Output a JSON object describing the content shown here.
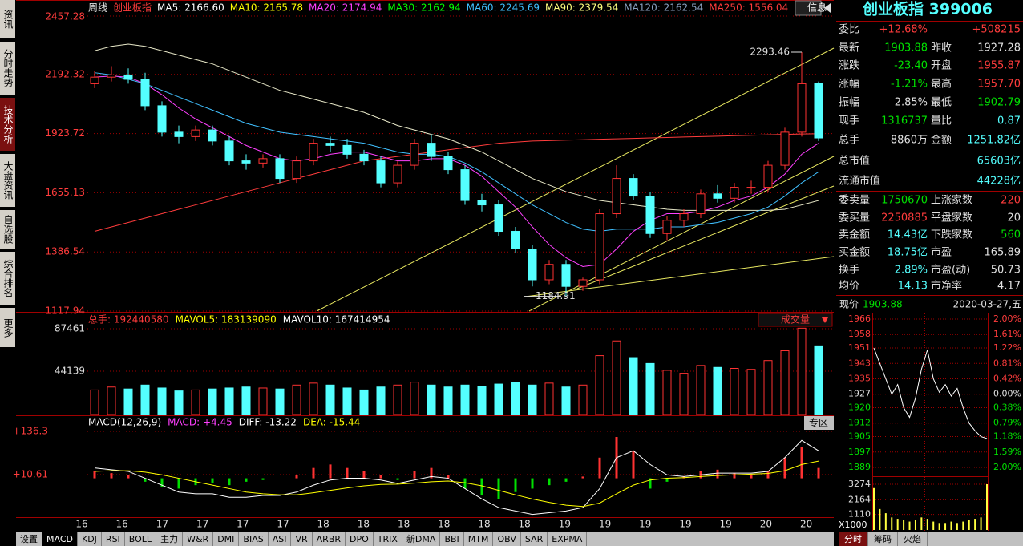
{
  "left_tabs": [
    "资讯",
    "分时走势",
    "技术分析",
    "大盘资讯",
    "自选股",
    "综合排名",
    "更多"
  ],
  "main_chart": {
    "type": "candlestick",
    "header_labels": [
      {
        "text": "周线",
        "color": "#e0e0e0"
      },
      {
        "text": "创业板指",
        "color": "#ff3c3c"
      },
      {
        "text": "MA5: 2166.60",
        "color": "#ffffff"
      },
      {
        "text": "MA10: 2165.78",
        "color": "#ffff00"
      },
      {
        "text": "MA20: 2174.94",
        "color": "#ff40ff"
      },
      {
        "text": "MA30: 2162.94",
        "color": "#00ff00"
      },
      {
        "text": "MA60: 2245.69",
        "color": "#40c0ff"
      },
      {
        "text": "MA90: 2379.54",
        "color": "#ffff80"
      },
      {
        "text": "MA120: 2162.54",
        "color": "#8aa0c0"
      },
      {
        "text": "MA250: 1556.04",
        "color": "#ff3c3c"
      }
    ],
    "info_button": "信息",
    "ylim": [
      1117.94,
      2457.28
    ],
    "yticks": [
      2457.28,
      2192.32,
      1923.72,
      1655.13,
      1386.54,
      1117.94
    ],
    "x_labels": [
      "16",
      "16",
      "17",
      "17",
      "17",
      "17",
      "18",
      "18",
      "18",
      "18",
      "18",
      "18",
      "19",
      "19",
      "19",
      "19",
      "19",
      "20",
      "20"
    ],
    "up_color": "#ff3232",
    "down_color": "#54ffff",
    "open": [
      2150,
      2180,
      2190,
      2170,
      2050,
      1930,
      1910,
      1940,
      1890,
      1800,
      1790,
      1810,
      1720,
      1800,
      1880,
      1870,
      1830,
      1800,
      1700,
      1780,
      1880,
      1820,
      1760,
      1620,
      1600,
      1480,
      1400,
      1260,
      1330,
      1230,
      1260,
      1560,
      1720,
      1640,
      1470,
      1530,
      1560,
      1650,
      1630,
      1680,
      1680,
      1780,
      1930,
      2150
    ],
    "high": [
      2210,
      2230,
      2220,
      2200,
      2070,
      1960,
      1960,
      1960,
      1910,
      1830,
      1830,
      1830,
      1820,
      1900,
      1910,
      1900,
      1850,
      1820,
      1800,
      1900,
      1920,
      1840,
      1780,
      1650,
      1620,
      1500,
      1420,
      1350,
      1350,
      1270,
      1580,
      1780,
      1740,
      1660,
      1550,
      1580,
      1670,
      1690,
      1700,
      1710,
      1800,
      1950,
      2293.46,
      2160
    ],
    "low": [
      2130,
      2160,
      2150,
      2030,
      1910,
      1880,
      1890,
      1870,
      1780,
      1760,
      1770,
      1700,
      1700,
      1780,
      1840,
      1810,
      1780,
      1680,
      1680,
      1760,
      1800,
      1740,
      1600,
      1570,
      1460,
      1380,
      1230,
      1240,
      1184.91,
      1210,
      1240,
      1540,
      1620,
      1450,
      1440,
      1500,
      1540,
      1610,
      1610,
      1650,
      1660,
      1760,
      1910,
      1890
    ],
    "close": [
      2180,
      2190,
      2170,
      2050,
      1930,
      1910,
      1940,
      1890,
      1800,
      1790,
      1810,
      1720,
      1800,
      1880,
      1870,
      1830,
      1800,
      1700,
      1780,
      1880,
      1820,
      1760,
      1620,
      1600,
      1480,
      1400,
      1260,
      1330,
      1230,
      1260,
      1560,
      1720,
      1640,
      1470,
      1530,
      1560,
      1650,
      1630,
      1680,
      1680,
      1780,
      1930,
      2150,
      1904
    ],
    "ma_lines": [
      {
        "color": "#ff3c3c",
        "values": [
          1480,
          1500,
          1520,
          1540,
          1560,
          1580,
          1600,
          1620,
          1640,
          1660,
          1680,
          1700,
          1720,
          1740,
          1760,
          1780,
          1800,
          1810,
          1820,
          1830,
          1840,
          1850,
          1860,
          1870,
          1880,
          1885,
          1890,
          1892,
          1894,
          1896,
          1898,
          1900,
          1902,
          1904,
          1906,
          1908,
          1910,
          1912,
          1914,
          1916,
          1918,
          1920,
          1922,
          1923
        ]
      },
      {
        "color": "#e8e8c8",
        "values": [
          2300,
          2320,
          2330,
          2320,
          2300,
          2280,
          2260,
          2240,
          2210,
          2180,
          2150,
          2120,
          2100,
          2080,
          2060,
          2040,
          2020,
          1990,
          1960,
          1940,
          1920,
          1900,
          1870,
          1840,
          1800,
          1760,
          1720,
          1690,
          1660,
          1640,
          1620,
          1610,
          1600,
          1590,
          1580,
          1575,
          1575,
          1575,
          1575,
          1575,
          1575,
          1580,
          1600,
          1620
        ]
      },
      {
        "color": "#40c0ff",
        "values": [
          2200,
          2190,
          2170,
          2150,
          2120,
          2090,
          2060,
          2030,
          2000,
          1970,
          1950,
          1930,
          1920,
          1910,
          1900,
          1890,
          1880,
          1860,
          1840,
          1830,
          1830,
          1820,
          1790,
          1750,
          1700,
          1650,
          1600,
          1560,
          1520,
          1490,
          1480,
          1490,
          1490,
          1490,
          1500,
          1500,
          1510,
          1520,
          1540,
          1560,
          1590,
          1640,
          1700,
          1750
        ]
      },
      {
        "color": "#ff40ff",
        "values": [
          2180,
          2185,
          2180,
          2150,
          2100,
          2040,
          1990,
          1950,
          1910,
          1870,
          1840,
          1810,
          1800,
          1810,
          1830,
          1840,
          1840,
          1820,
          1800,
          1800,
          1810,
          1810,
          1780,
          1730,
          1660,
          1590,
          1500,
          1420,
          1360,
          1320,
          1330,
          1400,
          1480,
          1530,
          1560,
          1560,
          1570,
          1590,
          1620,
          1640,
          1680,
          1740,
          1830,
          1880
        ]
      }
    ]
  },
  "volume_chart": {
    "labels": [
      {
        "text": "总手: 192440580",
        "color": "#ff3c3c"
      },
      {
        "text": "MAVOL5: 183139090",
        "color": "#ffff00"
      },
      {
        "text": "MAVOL10: 167414954",
        "color": "#ffffff"
      }
    ],
    "selector": "成交量",
    "ylim": [
      0,
      87461
    ],
    "yticks": [
      87461,
      44139
    ],
    "values": [
      25000,
      28000,
      26000,
      30000,
      27000,
      24000,
      25000,
      26000,
      27000,
      28000,
      27000,
      26000,
      30000,
      32000,
      30000,
      27000,
      25000,
      28000,
      30000,
      33000,
      30000,
      28000,
      30000,
      29000,
      31000,
      33000,
      30000,
      32000,
      28000,
      30000,
      60000,
      75000,
      58000,
      52000,
      45000,
      42000,
      50000,
      48000,
      47000,
      46000,
      55000,
      65000,
      88000,
      70000
    ]
  },
  "macd_chart": {
    "labels": [
      {
        "text": "MACD(12,26,9)",
        "color": "#ffffff"
      },
      {
        "text": "MACD: +4.45",
        "color": "#ff40ff"
      },
      {
        "text": "DIFF: -13.22",
        "color": "#ffffff"
      },
      {
        "text": "DEA: -15.44",
        "color": "#ffff00"
      }
    ],
    "zone_button": "专区",
    "yticks": [
      {
        "value": 136.3,
        "label": "+136.3"
      },
      {
        "value": 10.61,
        "label": "+10.61"
      }
    ],
    "macd": [
      20,
      15,
      10,
      -10,
      -25,
      -30,
      -20,
      -15,
      -20,
      -10,
      -5,
      0,
      10,
      30,
      40,
      30,
      20,
      10,
      -5,
      20,
      30,
      10,
      -30,
      -50,
      -60,
      -40,
      -30,
      -20,
      -10,
      5,
      60,
      120,
      80,
      -30,
      -10,
      5,
      20,
      25,
      15,
      10,
      20,
      60,
      90,
      30
    ],
    "diff": [
      30,
      25,
      20,
      0,
      -20,
      -40,
      -45,
      -45,
      -55,
      -55,
      -50,
      -50,
      -40,
      -20,
      -5,
      0,
      0,
      -5,
      -15,
      -5,
      5,
      0,
      -30,
      -60,
      -85,
      -95,
      -105,
      -100,
      -95,
      -85,
      -30,
      60,
      80,
      40,
      10,
      5,
      10,
      15,
      15,
      15,
      20,
      60,
      110,
      80
    ],
    "dea": [
      20,
      22,
      22,
      18,
      10,
      0,
      -10,
      -20,
      -30,
      -40,
      -45,
      -48,
      -48,
      -42,
      -35,
      -28,
      -22,
      -18,
      -17,
      -14,
      -10,
      -8,
      -13,
      -22,
      -35,
      -48,
      -60,
      -70,
      -78,
      -82,
      -72,
      -45,
      -20,
      -5,
      0,
      2,
      5,
      8,
      10,
      12,
      14,
      22,
      40,
      50
    ]
  },
  "bottom_tabs": [
    "设置",
    "MACD",
    "KDJ",
    "RSI",
    "BOLL",
    "主力",
    "W&R",
    "DMI",
    "BIAS",
    "ASI",
    "VR",
    "ARBR",
    "DPO",
    "TRIX",
    "新DMA",
    "BBI",
    "MTM",
    "OBV",
    "SAR",
    "EXPMA"
  ],
  "selected_tab": 1,
  "quote": {
    "title": "创业板指 399006",
    "rows": [
      {
        "cells": [
          "委比",
          "+12.68%",
          "+508215"
        ],
        "colors": [
          "#e0e0e0",
          "#ff3c3c",
          "#ff3c3c"
        ]
      },
      {
        "cells": [
          "最新",
          "1903.88",
          "昨收",
          "1927.28"
        ],
        "colors": [
          "#e0e0e0",
          "#00e000",
          "#e0e0e0",
          "#e0e0e0"
        ]
      },
      {
        "cells": [
          "涨跌",
          "-23.40",
          "开盘",
          "1955.87"
        ],
        "colors": [
          "#e0e0e0",
          "#00e000",
          "#e0e0e0",
          "#ff3c3c"
        ]
      },
      {
        "cells": [
          "涨幅",
          "-1.21%",
          "最高",
          "1957.70"
        ],
        "colors": [
          "#e0e0e0",
          "#00e000",
          "#e0e0e0",
          "#ff3c3c"
        ]
      },
      {
        "cells": [
          "振幅",
          "2.85%",
          "最低",
          "1902.79"
        ],
        "colors": [
          "#e0e0e0",
          "#e0e0e0",
          "#e0e0e0",
          "#00e000"
        ]
      },
      {
        "cells": [
          "现手",
          "1316737",
          "量比",
          "0.87"
        ],
        "colors": [
          "#e0e0e0",
          "#00e000",
          "#e0e0e0",
          "#54ffff"
        ]
      },
      {
        "cells": [
          "总手",
          "8860万",
          "金额",
          "1251.82亿"
        ],
        "colors": [
          "#e0e0e0",
          "#e0e0e0",
          "#e0e0e0",
          "#54ffff"
        ]
      },
      {
        "cells": [
          "总市值",
          "65603亿"
        ],
        "colors": [
          "#e0e0e0",
          "#54ffff"
        ]
      },
      {
        "cells": [
          "流通市值",
          "44228亿"
        ],
        "colors": [
          "#e0e0e0",
          "#54ffff"
        ]
      },
      {
        "cells": [
          "委卖量",
          "1750670",
          "上涨家数",
          "220"
        ],
        "colors": [
          "#e0e0e0",
          "#00e000",
          "#e0e0e0",
          "#ff3c3c"
        ]
      },
      {
        "cells": [
          "委买量",
          "2250885",
          "平盘家数",
          "20"
        ],
        "colors": [
          "#e0e0e0",
          "#ff3c3c",
          "#e0e0e0",
          "#e0e0e0"
        ]
      },
      {
        "cells": [
          "卖金额",
          "14.43亿",
          "下跌家数",
          "560"
        ],
        "colors": [
          "#e0e0e0",
          "#54ffff",
          "#e0e0e0",
          "#00e000"
        ]
      },
      {
        "cells": [
          "买金额",
          "18.75亿",
          "市盈",
          "165.89"
        ],
        "colors": [
          "#e0e0e0",
          "#54ffff",
          "#e0e0e0",
          "#e0e0e0"
        ]
      },
      {
        "cells": [
          "换手",
          "2.89%",
          "市盈(动)",
          "50.73"
        ],
        "colors": [
          "#e0e0e0",
          "#54ffff",
          "#e0e0e0",
          "#e0e0e0"
        ]
      },
      {
        "cells": [
          "均价",
          "14.13",
          "市净率",
          "4.17"
        ],
        "colors": [
          "#e0e0e0",
          "#54ffff",
          "#e0e0e0",
          "#e0e0e0"
        ]
      }
    ]
  },
  "intraday": {
    "price_label": "现价",
    "price": 1903.88,
    "datetime": "2020-03-27,五",
    "ylim": [
      1889,
      1966
    ],
    "price_ticks": [
      1966,
      1958,
      1951,
      1943,
      1935,
      1927,
      1920,
      1912,
      1905,
      1897,
      1889
    ],
    "pct_ticks": [
      "2.00%",
      "1.61%",
      "1.22%",
      "0.81%",
      "0.42%",
      "0.00%",
      "0.38%",
      "0.79%",
      "1.18%",
      "1.59%",
      "2.00%"
    ],
    "tick_colors": [
      "#ff3c3c",
      "#ff3c3c",
      "#ff3c3c",
      "#ff3c3c",
      "#ff3c3c",
      "#e0e0e0",
      "#00e000",
      "#00e000",
      "#00e000",
      "#00e000",
      "#00e000"
    ],
    "values": [
      1951,
      1943,
      1935,
      1927,
      1932,
      1920,
      1915,
      1925,
      1940,
      1950,
      1935,
      1928,
      1932,
      1926,
      1930,
      1920,
      1912,
      1908,
      1905,
      1904
    ],
    "vol_ylim": [
      0,
      3274
    ],
    "vol_ticks": [
      3274,
      2164,
      1110
    ],
    "vol_unit": "X1000",
    "volume": [
      3000,
      1500,
      1200,
      900,
      800,
      700,
      600,
      700,
      900,
      800,
      600,
      500,
      500,
      600,
      500,
      600,
      700,
      800,
      900,
      3274
    ]
  },
  "intraday_tabs": [
    "分时",
    "筹码",
    "火焰"
  ]
}
